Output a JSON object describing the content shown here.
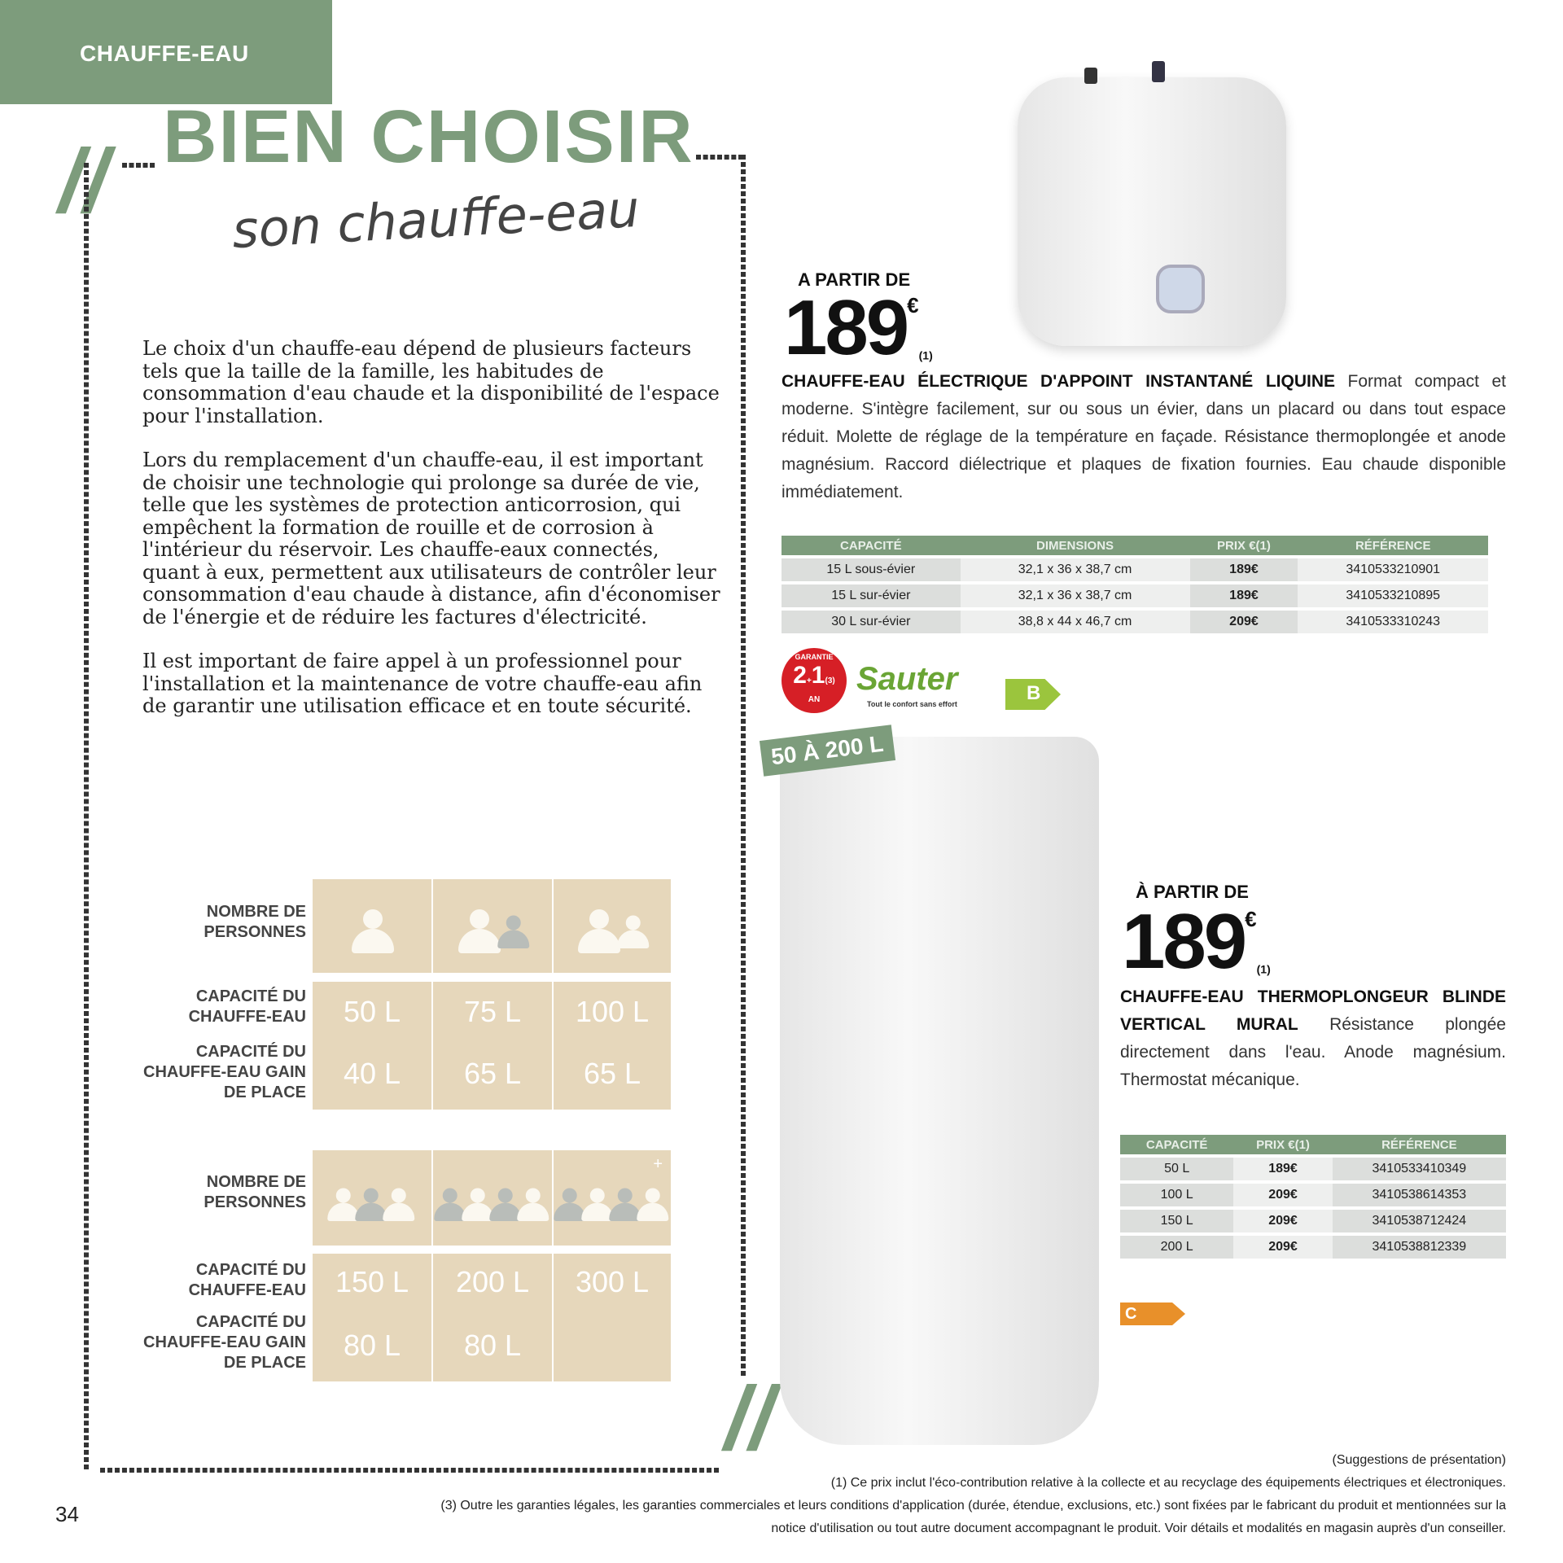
{
  "header": {
    "section": "CHAUFFE-EAU"
  },
  "title": "BIEN CHOISIR",
  "subtitle": "son chauffe-eau",
  "intro": [
    "Le choix d'un chauffe-eau dépend de plusieurs facteurs tels que la taille de la famille, les habitudes de consommation d'eau chaude et la disponibilité de l'espace pour l'installation.",
    "Lors du remplacement d'un chauffe-eau, il est important de choisir une technologie qui prolonge sa durée de vie, telle que les systèmes de protection anticorrosion, qui empêchent la formation de rouille et de corrosion à l'intérieur du réservoir. Les chauffe-eaux connectés, quant à eux, permettent aux utilisateurs de contrôler leur consommation d'eau chaude à distance, afin d'économiser de l'énergie et de réduire les factures d'électricité.",
    "Il est important de faire appel à un professionnel pour l'installation et la maintenance de votre chauffe-eau afin de garantir une utilisation efficace et en toute sécurité."
  ],
  "guide": {
    "labels": {
      "people": "NOMBRE DE PERSONNES",
      "capacity": "CAPACITÉ DU CHAUFFE-EAU",
      "compact": "CAPACITÉ DU CHAUFFE-EAU GAIN DE PLACE"
    },
    "blocks": [
      {
        "capacity": [
          "50 L",
          "75 L",
          "100 L"
        ],
        "compact": [
          "40 L",
          "65 L",
          "65 L"
        ]
      },
      {
        "capacity": [
          "150 L",
          "200 L",
          "300 L"
        ],
        "compact": [
          "80 L",
          "80 L",
          ""
        ],
        "plus": "+"
      }
    ]
  },
  "product1": {
    "price_lead": "A PARTIR DE",
    "price": "189",
    "currency": "€",
    "note": "(1)",
    "name": "CHAUFFE-EAU ÉLECTRIQUE D'APPOINT INSTANTANÉ LIQUINE",
    "description": "Format compact et moderne. S'intègre facilement, sur ou sous un évier, dans un placard ou dans tout espace réduit. Molette de réglage de la température en façade. Résistance thermoplongée et anode magnésium. Raccord diélectrique et plaques de fixation fournies. Eau chaude disponible immédiatement.",
    "table": {
      "headers": [
        "CAPACITÉ",
        "DIMENSIONS",
        "PRIX €(1)",
        "RÉFÉRENCE"
      ],
      "rows": [
        [
          "15 L sous-évier",
          "32,1 x 36 x 38,7 cm",
          "189€",
          "3410533210901"
        ],
        [
          "15 L sur-évier",
          "32,1 x 36 x 38,7 cm",
          "189€",
          "3410533210895"
        ],
        [
          "30 L sur-évier",
          "38,8 x 44 x 46,7 cm",
          "209€",
          "3410533310243"
        ]
      ]
    },
    "brand_logo": "Sauter",
    "brand_tagline": "Tout le confort sans effort",
    "warranty": {
      "years": "2",
      "extra": "1",
      "unit": "AN",
      "label": "GARANTIE",
      "note": "(3)"
    },
    "energy_class": "B",
    "energy_color": "#9bc53d"
  },
  "product2": {
    "range_tag": "50 À 200 L",
    "price_lead": "À PARTIR DE",
    "price": "189",
    "currency": "€",
    "note": "(1)",
    "name": "CHAUFFE-EAU THERMOPLONGEUR BLINDE VERTICAL MURAL",
    "description": "Résistance plongée directement dans l'eau. Anode magnésium. Thermostat mécanique.",
    "table": {
      "headers": [
        "CAPACITÉ",
        "PRIX €(1)",
        "RÉFÉRENCE"
      ],
      "rows": [
        [
          "50 L",
          "189€",
          "3410533410349"
        ],
        [
          "100 L",
          "209€",
          "3410538614353"
        ],
        [
          "150 L",
          "209€",
          "3410538712424"
        ],
        [
          "200 L",
          "209€",
          "3410538812339"
        ]
      ]
    },
    "energy_class": "C",
    "energy_color": "#e8902a"
  },
  "footer": {
    "presentation": "(Suggestions de présentation)",
    "note1": "(1) Ce prix inclut l'éco-contribution relative à la collecte et au recyclage des équipements électriques et électroniques.",
    "note3a": "(3) Outre les garanties légales, les garanties commerciales et leurs conditions d'application (durée, étendue, exclusions, etc.) sont fixées par le fabricant du produit et mentionnées sur la",
    "note3b": "notice d'utilisation ou tout autre document accompagnant le produit. Voir détails et modalités en magasin auprès d'un conseiller.",
    "page": "34"
  },
  "colors": {
    "accent": "#7d9c7c",
    "guide_cell": "#e6d7bb",
    "warranty": "#d61f26",
    "brand": "#6aa535"
  }
}
